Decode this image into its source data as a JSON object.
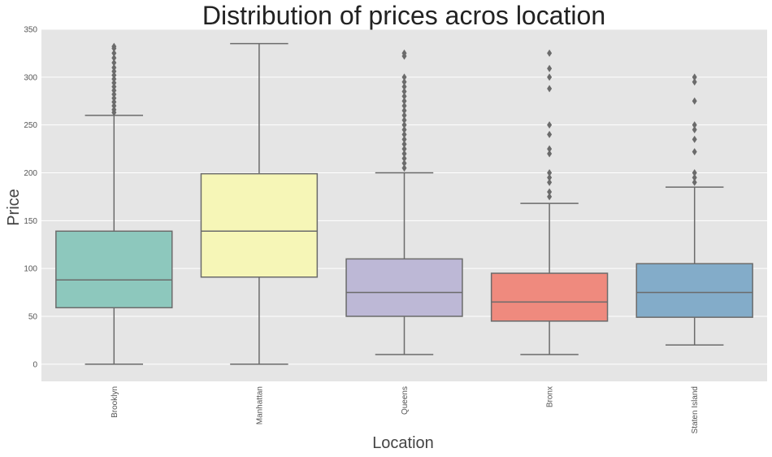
{
  "chart_data": {
    "type": "box",
    "title": "Distribution of prices acros location",
    "xlabel": "Location",
    "ylabel": "Price",
    "ylim": [
      -18,
      350
    ],
    "yticks": [
      "0",
      "50",
      "100",
      "150",
      "200",
      "250",
      "300",
      "350"
    ],
    "ytick_values": [
      0,
      50,
      100,
      150,
      200,
      250,
      300,
      350
    ],
    "grid": true,
    "colors": {
      "background": "#e5e5e5",
      "grid": "#ffffff",
      "box_edge": "#6b6b6b",
      "outlier": "#6b6b6b"
    },
    "categories": [
      "Brooklyn",
      "Manhattan",
      "Queens",
      "Bronx",
      "Staten Island"
    ],
    "boxes": [
      {
        "name": "Brooklyn",
        "color": "#8dc8bd",
        "whisker_low": 0,
        "q1": 59,
        "median": 88,
        "q3": 139,
        "whisker_high": 260,
        "outliers": [
          263,
          266,
          270,
          274,
          278,
          282,
          286,
          290,
          294,
          298,
          302,
          306,
          310,
          315,
          320,
          325,
          330,
          332
        ]
      },
      {
        "name": "Manhattan",
        "color": "#f6f6b7",
        "whisker_low": 0,
        "q1": 91,
        "median": 139,
        "q3": 199,
        "whisker_high": 335,
        "outliers": []
      },
      {
        "name": "Queens",
        "color": "#bdb8d6",
        "whisker_low": 10,
        "q1": 50,
        "median": 75,
        "q3": 110,
        "whisker_high": 200,
        "outliers": [
          205,
          210,
          215,
          220,
          225,
          230,
          235,
          240,
          245,
          250,
          255,
          260,
          265,
          270,
          275,
          280,
          285,
          290,
          295,
          300,
          322,
          325
        ]
      },
      {
        "name": "Bronx",
        "color": "#ef8a7e",
        "whisker_low": 10,
        "q1": 45,
        "median": 65,
        "q3": 95,
        "whisker_high": 168,
        "outliers": [
          175,
          180,
          190,
          195,
          200,
          220,
          225,
          240,
          250,
          288,
          300,
          309,
          325
        ]
      },
      {
        "name": "Staten Island",
        "color": "#83acc9",
        "whisker_low": 20,
        "q1": 49,
        "median": 75,
        "q3": 105,
        "whisker_high": 185,
        "outliers": [
          190,
          195,
          200,
          222,
          235,
          245,
          250,
          275,
          295,
          300
        ]
      }
    ]
  }
}
